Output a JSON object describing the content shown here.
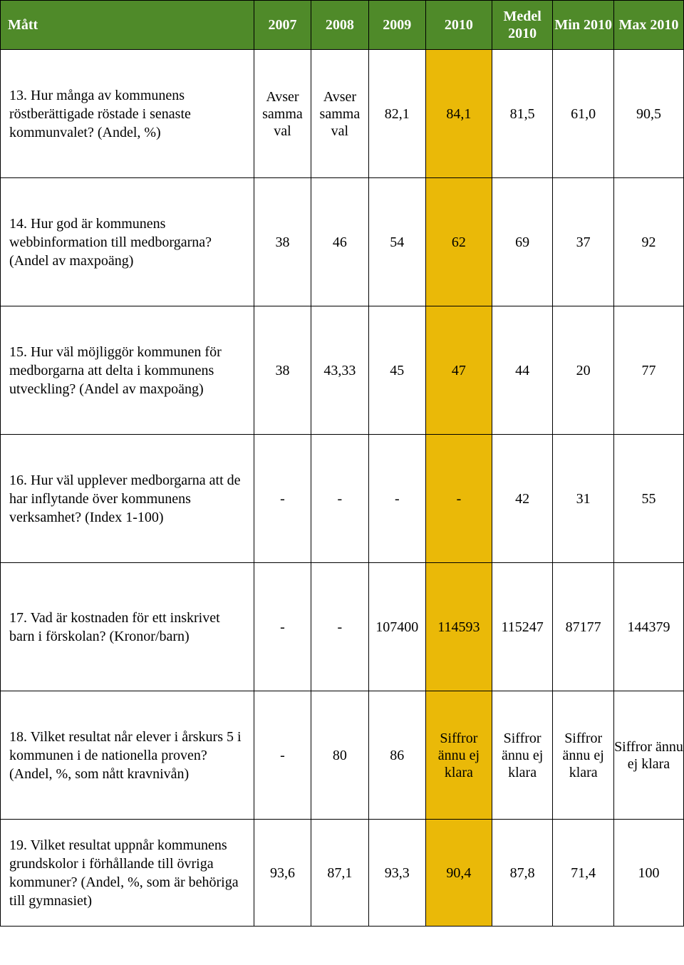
{
  "header": {
    "label": "Mått",
    "y2007": "2007",
    "y2008": "2008",
    "y2009": "2009",
    "y2010": "2010",
    "medel": "Medel 2010",
    "min": "Min 2010",
    "max": "Max 2010"
  },
  "rows": [
    {
      "label": "13. Hur många av kommunens röstberättigade röstade i senaste kommunvalet? (Andel, %)",
      "y2007": "Avser samma val",
      "y2008": "Avser samma val",
      "y2009": "82,1",
      "y2010": "84,1",
      "medel": "81,5",
      "min": "61,0",
      "max": "90,5"
    },
    {
      "label": "14. Hur god är kommunens webbinformation till medborgarna? (Andel av maxpoäng)",
      "y2007": "38",
      "y2008": "46",
      "y2009": "54",
      "y2010": "62",
      "medel": "69",
      "min": "37",
      "max": "92"
    },
    {
      "label": "15. Hur väl möjliggör kommunen för medborgarna att delta i kommunens utveckling? (Andel av maxpoäng)",
      "y2007": "38",
      "y2008": "43,33",
      "y2009": "45",
      "y2010": "47",
      "medel": "44",
      "min": "20",
      "max": "77"
    },
    {
      "label": "16. Hur väl upplever medborgarna att de har inflytande över kommunens verksamhet? (Index 1-100)",
      "y2007": "-",
      "y2008": "-",
      "y2009": "-",
      "y2010": "-",
      "medel": "42",
      "min": "31",
      "max": "55"
    },
    {
      "label": "17. Vad är kostnaden för ett inskrivet barn i förskolan? (Kronor/barn)",
      "y2007": "-",
      "y2008": "-",
      "y2009": "107400",
      "y2010": "114593",
      "medel": "115247",
      "min": "87177",
      "max": "144379"
    },
    {
      "label": "18. Vilket resultat når elever i årskurs 5 i kommunen i de nationella proven? (Andel, %, som nått kravnivån)",
      "y2007": "-",
      "y2008": "80",
      "y2009": "86",
      "y2010": "Siffror ännu ej klara",
      "medel": "Siffror ännu ej klara",
      "min": "Siffror ännu ej klara",
      "max": "Siffror ännu ej klara"
    },
    {
      "label": "19. Vilket resultat uppnår kommunens grundskolor i förhållande till övriga kommuner? (Andel, %, som är behöriga till gymnasiet)",
      "y2007": "93,6",
      "y2008": "87,1",
      "y2009": "93,3",
      "y2010": "90,4",
      "medel": "87,8",
      "min": "71,4",
      "max": "100"
    }
  ],
  "colors": {
    "header_bg": "#4f8a29",
    "header_text": "#ffffff",
    "highlight_bg": "#eab908",
    "border": "#000000",
    "background": "#ffffff"
  },
  "fonts": {
    "family": "Garamond, Georgia, serif",
    "header_size_pt": 15,
    "cell_size_pt": 15
  }
}
